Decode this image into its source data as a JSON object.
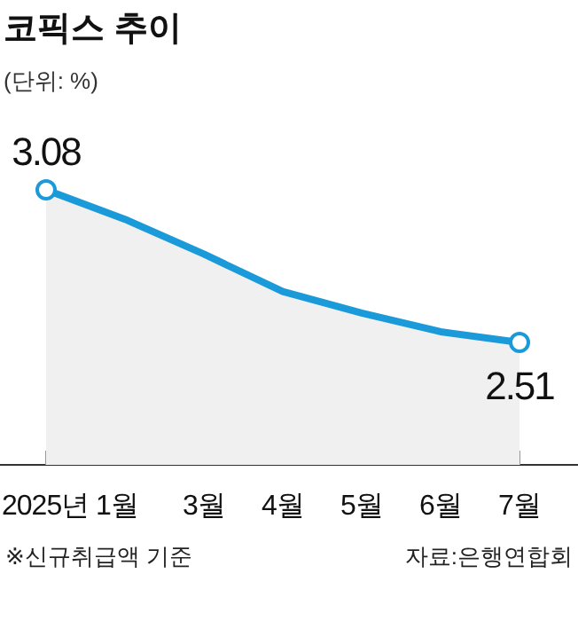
{
  "chart_data": {
    "type": "area",
    "title": "코픽스 추이",
    "subtitle": "(단위: %)",
    "categories": [
      "2025년 1월",
      null,
      "3월",
      "4월",
      "5월",
      "6월",
      "7월"
    ],
    "series": [
      {
        "color": "#1a9ad9",
        "values": [
          3.08,
          2.97,
          2.84,
          2.7,
          2.62,
          2.55,
          2.51
        ],
        "value_labels": [
          "3.08",
          null,
          null,
          null,
          null,
          null,
          "2.51"
        ]
      }
    ],
    "annotations": [
      "※신규취급액 기준",
      "자료:은행연합회"
    ]
  }
}
